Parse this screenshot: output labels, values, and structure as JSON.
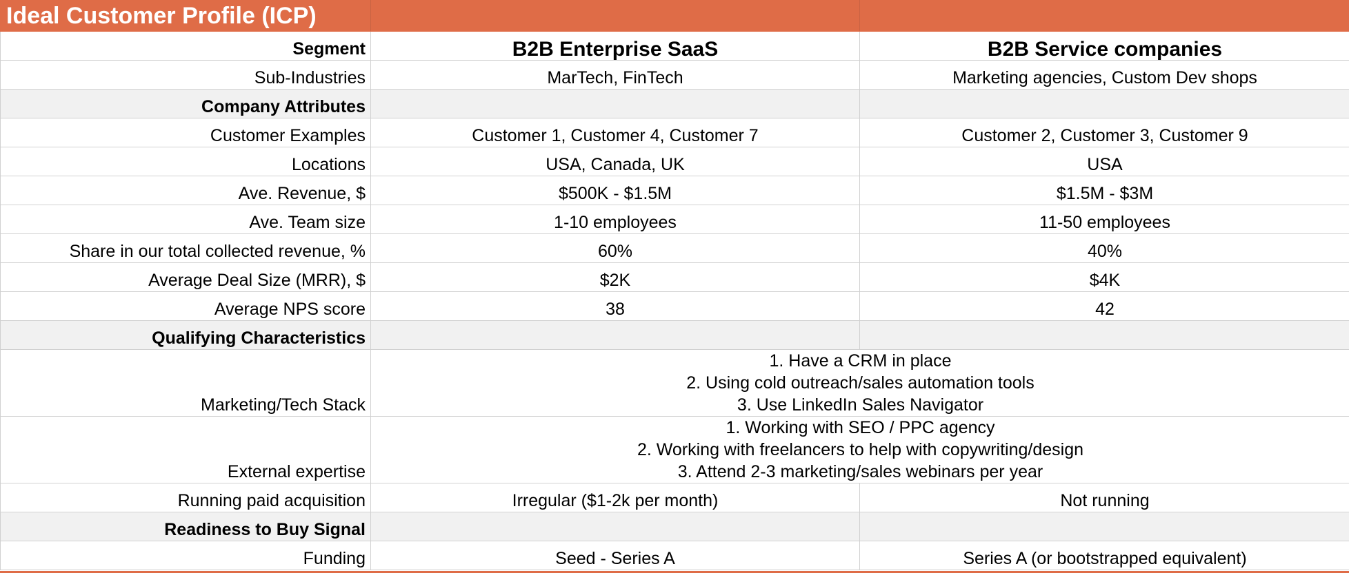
{
  "title": "Ideal Customer Profile (ICP)",
  "colors": {
    "header_bg": "#df6c47",
    "section_bg": "#f1f1f1",
    "grid": "#d0d0d0"
  },
  "segments": {
    "label": "Segment",
    "col1": "B2B Enterprise SaaS",
    "col2": "B2B Service companies"
  },
  "rows": {
    "sub_industries": {
      "label": "Sub-Industries",
      "col1": "MarTech, FinTech",
      "col2": "Marketing agencies, Custom Dev shops"
    },
    "company_attributes": {
      "label": "Company Attributes"
    },
    "customer_examples": {
      "label": "Customer Examples",
      "col1": "Customer 1, Customer 4, Customer 7",
      "col2": "Customer 2, Customer 3, Customer 9"
    },
    "locations": {
      "label": "Locations",
      "col1": "USA, Canada, UK",
      "col2": "USA"
    },
    "ave_revenue": {
      "label": "Ave. Revenue, $",
      "col1": "$500K - $1.5M",
      "col2": "$1.5M - $3M"
    },
    "ave_team_size": {
      "label": "Ave. Team size",
      "col1": "1-10 employees",
      "col2": "11-50 employees"
    },
    "share_revenue": {
      "label": "Share in our total collected revenue, %",
      "col1": "60%",
      "col2": "40%"
    },
    "deal_size": {
      "label": "Average Deal Size (MRR), $",
      "col1": "$2K",
      "col2": "$4K"
    },
    "nps": {
      "label": "Average NPS score",
      "col1": "38",
      "col2": "42"
    },
    "qualifying": {
      "label": "Qualifying Characteristics"
    },
    "tech_stack": {
      "label": "Marketing/Tech Stack",
      "lines": [
        "1. Have a CRM in place",
        "2. Using cold outreach/sales automation tools",
        "3. Use LinkedIn Sales Navigator"
      ]
    },
    "external_expertise": {
      "label": "External expertise",
      "lines": [
        "1. Working with SEO / PPC agency",
        "2. Working with freelancers to help with copywriting/design",
        "3. Attend 2-3 marketing/sales webinars per year"
      ]
    },
    "paid_acquisition": {
      "label": "Running paid acquisition",
      "col1": "Irregular ($1-2k per month)",
      "col2": "Not running"
    },
    "readiness": {
      "label": "Readiness to Buy Signal"
    },
    "funding": {
      "label": "Funding",
      "col1": "Seed - Series A",
      "col2": "Series A (or bootstrapped equivalent)"
    }
  }
}
